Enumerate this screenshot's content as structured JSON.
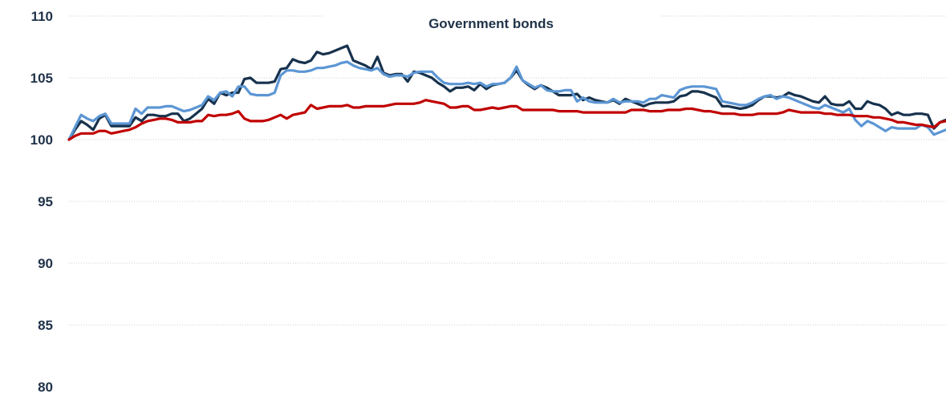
{
  "chart_data": {
    "type": "line",
    "title": "Government bonds",
    "xlabel": "",
    "ylabel": "",
    "ylim": [
      80,
      110
    ],
    "yticks": [
      80,
      85,
      90,
      95,
      100,
      105,
      110
    ],
    "grid": true,
    "legend": "none",
    "series": [
      {
        "color": "#17324d",
        "values": [
          100,
          100.8,
          101.5,
          101.2,
          100.8,
          101.7,
          102.0,
          101.1,
          101.1,
          101.1,
          101.1,
          101.8,
          101.5,
          102.0,
          102.0,
          101.9,
          101.9,
          102.1,
          102.1,
          101.5,
          101.7,
          102.1,
          102.5,
          103.3,
          102.9,
          103.8,
          103.6,
          103.8,
          103.8,
          104.9,
          105.0,
          104.6,
          104.6,
          104.6,
          104.7,
          105.7,
          105.8,
          106.5,
          106.3,
          106.2,
          106.4,
          107.1,
          106.9,
          107.0,
          107.2,
          107.4,
          107.6,
          106.4,
          106.2,
          106.0,
          105.7,
          106.7,
          105.4,
          105.2,
          105.3,
          105.3,
          104.7,
          105.5,
          105.4,
          105.2,
          105.0,
          104.6,
          104.3,
          103.9,
          104.2,
          104.2,
          104.3,
          104.0,
          104.5,
          104.1,
          104.4,
          104.5,
          104.6,
          105.0,
          105.6,
          104.8,
          104.4,
          104.1,
          104.4,
          104.2,
          103.9,
          103.6,
          103.6,
          103.6,
          103.7,
          103.2,
          103.4,
          103.2,
          103.1,
          103.0,
          103.2,
          102.9,
          103.3,
          103.1,
          102.9,
          102.7,
          102.9,
          103.0,
          103.0,
          103.0,
          103.1,
          103.5,
          103.6,
          103.9,
          103.9,
          103.8,
          103.6,
          103.4,
          102.7,
          102.7,
          102.6,
          102.5,
          102.6,
          102.8,
          103.2,
          103.5,
          103.5,
          103.4,
          103.5,
          103.8,
          103.6,
          103.5,
          103.3,
          103.1,
          103.0,
          103.5,
          102.9,
          102.8,
          102.8,
          103.1,
          102.5,
          102.5,
          103.1,
          102.9,
          102.8,
          102.5,
          102.0,
          102.2,
          102.0,
          102.0,
          102.1,
          102.1,
          102.0,
          100.9,
          101.4,
          101.6
        ]
      },
      {
        "color": "#5c96d4",
        "values": [
          100,
          101.0,
          102.0,
          101.7,
          101.5,
          101.9,
          102.1,
          101.3,
          101.3,
          101.3,
          101.3,
          102.5,
          102.1,
          102.6,
          102.6,
          102.6,
          102.7,
          102.7,
          102.5,
          102.3,
          102.4,
          102.6,
          102.8,
          103.5,
          103.2,
          103.8,
          103.9,
          103.5,
          104.3,
          104.3,
          103.7,
          103.6,
          103.6,
          103.6,
          103.8,
          105.2,
          105.6,
          105.6,
          105.5,
          105.5,
          105.6,
          105.8,
          105.8,
          105.9,
          106.0,
          106.2,
          106.3,
          106.0,
          105.8,
          105.7,
          105.6,
          105.8,
          105.3,
          105.1,
          105.2,
          105.2,
          105.1,
          105.4,
          105.5,
          105.5,
          105.5,
          105.0,
          104.6,
          104.5,
          104.5,
          104.5,
          104.6,
          104.5,
          104.6,
          104.3,
          104.5,
          104.5,
          104.6,
          105.0,
          105.9,
          104.8,
          104.5,
          104.2,
          104.4,
          104.0,
          103.9,
          103.9,
          104.0,
          104.0,
          103.1,
          103.4,
          103.1,
          103.0,
          103.0,
          103.0,
          103.3,
          103.0,
          103.1,
          103.1,
          103.1,
          103.0,
          103.3,
          103.3,
          103.6,
          103.5,
          103.4,
          104.0,
          104.2,
          104.3,
          104.3,
          104.3,
          104.2,
          104.1,
          103.1,
          103.0,
          102.9,
          102.8,
          102.8,
          103.0,
          103.3,
          103.5,
          103.6,
          103.3,
          103.5,
          103.4,
          103.2,
          103.0,
          102.8,
          102.6,
          102.5,
          102.8,
          102.6,
          102.4,
          102.2,
          102.5,
          101.6,
          101.1,
          101.5,
          101.3,
          101.0,
          100.7,
          101.0,
          100.9,
          100.9,
          100.9,
          100.9,
          101.2,
          101.0,
          100.4,
          100.6,
          100.8
        ]
      },
      {
        "color": "#c00000",
        "values": [
          100,
          100.3,
          100.5,
          100.5,
          100.5,
          100.7,
          100.7,
          100.5,
          100.6,
          100.7,
          100.8,
          101.0,
          101.3,
          101.5,
          101.6,
          101.7,
          101.7,
          101.6,
          101.4,
          101.4,
          101.4,
          101.5,
          101.5,
          102.0,
          101.9,
          102.0,
          102.0,
          102.1,
          102.3,
          101.7,
          101.5,
          101.5,
          101.5,
          101.6,
          101.8,
          102.0,
          101.7,
          102.0,
          102.1,
          102.2,
          102.8,
          102.5,
          102.6,
          102.7,
          102.7,
          102.7,
          102.8,
          102.6,
          102.6,
          102.7,
          102.7,
          102.7,
          102.7,
          102.8,
          102.9,
          102.9,
          102.9,
          102.9,
          103.0,
          103.2,
          103.1,
          103.0,
          102.9,
          102.6,
          102.6,
          102.7,
          102.7,
          102.4,
          102.4,
          102.5,
          102.6,
          102.5,
          102.6,
          102.7,
          102.7,
          102.4,
          102.4,
          102.4,
          102.4,
          102.4,
          102.4,
          102.3,
          102.3,
          102.3,
          102.3,
          102.2,
          102.2,
          102.2,
          102.2,
          102.2,
          102.2,
          102.2,
          102.2,
          102.4,
          102.4,
          102.4,
          102.3,
          102.3,
          102.3,
          102.4,
          102.4,
          102.4,
          102.5,
          102.5,
          102.4,
          102.3,
          102.3,
          102.2,
          102.1,
          102.1,
          102.1,
          102.0,
          102.0,
          102.0,
          102.1,
          102.1,
          102.1,
          102.1,
          102.2,
          102.4,
          102.3,
          102.2,
          102.2,
          102.2,
          102.2,
          102.1,
          102.1,
          102.0,
          102.0,
          102.0,
          101.9,
          101.9,
          101.9,
          101.8,
          101.8,
          101.7,
          101.6,
          101.4,
          101.4,
          101.3,
          101.2,
          101.2,
          101.1,
          101.0,
          101.4,
          101.5
        ]
      }
    ]
  }
}
